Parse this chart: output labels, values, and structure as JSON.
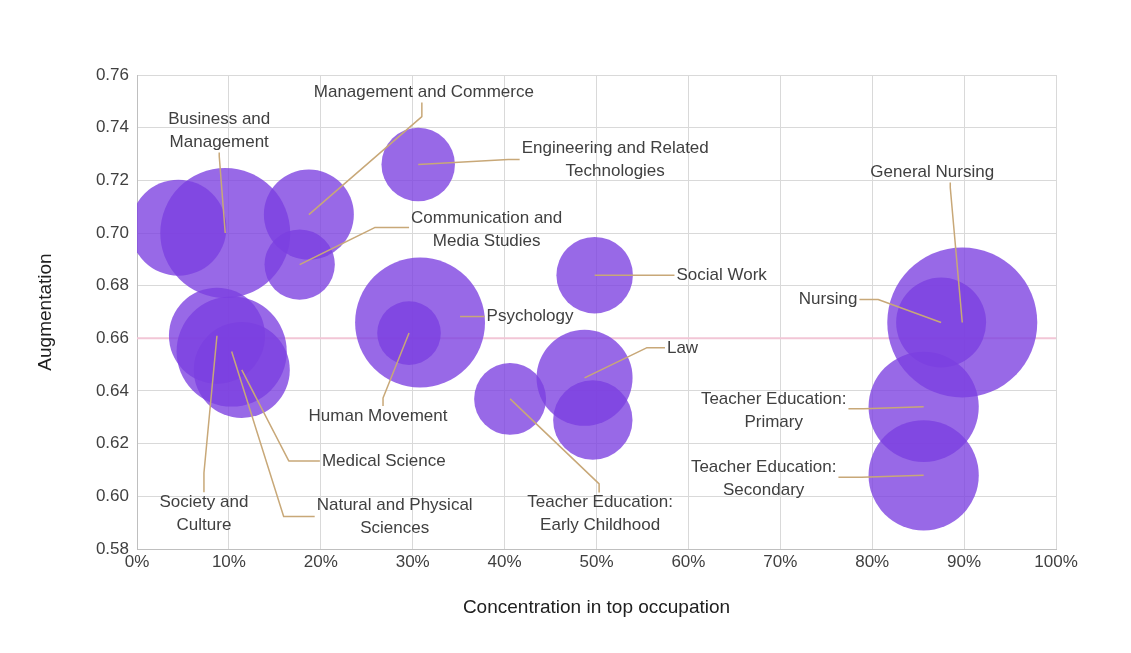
{
  "chart_data": {
    "type": "bubble",
    "xlabel": "Concentration in top occupation",
    "ylabel": "Augmentation",
    "xlim": [
      0,
      100
    ],
    "ylim": [
      0.58,
      0.76
    ],
    "xticks": [
      {
        "value": 0,
        "label": "0%"
      },
      {
        "value": 10,
        "label": "10%"
      },
      {
        "value": 20,
        "label": "20%"
      },
      {
        "value": 30,
        "label": "30%"
      },
      {
        "value": 40,
        "label": "40%"
      },
      {
        "value": 50,
        "label": "50%"
      },
      {
        "value": 60,
        "label": "60%"
      },
      {
        "value": 70,
        "label": "70%"
      },
      {
        "value": 80,
        "label": "80%"
      },
      {
        "value": 90,
        "label": "90%"
      },
      {
        "value": 100,
        "label": "100%"
      }
    ],
    "yticks": [
      {
        "value": 0.58,
        "label": "0.58"
      },
      {
        "value": 0.6,
        "label": "0.60"
      },
      {
        "value": 0.62,
        "label": "0.62"
      },
      {
        "value": 0.64,
        "label": "0.64"
      },
      {
        "value": 0.66,
        "label": "0.66"
      },
      {
        "value": 0.68,
        "label": "0.68"
      },
      {
        "value": 0.7,
        "label": "0.70"
      },
      {
        "value": 0.72,
        "label": "0.72"
      },
      {
        "value": 0.74,
        "label": "0.74"
      },
      {
        "value": 0.76,
        "label": "0.76"
      }
    ],
    "grid": true,
    "legend": false,
    "ref_lines": [
      {
        "axis": "y",
        "value": 0.66,
        "color": "#f2c6d6"
      }
    ],
    "series": [
      {
        "color": "#7b3fe0",
        "x": [
          4.5
        ],
        "values": [
          0.702
        ],
        "sizes": [
          0.41
        ]
      },
      {
        "name": "Business and Management",
        "color": "#7b3fe0",
        "x": [
          9.6
        ],
        "values": [
          0.7
        ],
        "sizes": [
          0.75
        ]
      },
      {
        "name": "Management and Commerce",
        "color": "#7b3fe0",
        "x": [
          18.7
        ],
        "values": [
          0.707
        ],
        "sizes": [
          0.36
        ]
      },
      {
        "name": "Communication and Media Studies",
        "color": "#7b3fe0",
        "x": [
          17.7
        ],
        "values": [
          0.688
        ],
        "sizes": [
          0.22
        ]
      },
      {
        "name": "Engineering and Related Technologies",
        "color": "#7b3fe0",
        "x": [
          30.6
        ],
        "values": [
          0.726
        ],
        "sizes": [
          0.24
        ]
      },
      {
        "name": "Social Work",
        "color": "#7b3fe0",
        "x": [
          49.8
        ],
        "values": [
          0.684
        ],
        "sizes": [
          0.26
        ]
      },
      {
        "name": "Psychology",
        "color": "#7b3fe0",
        "x": [
          30.8
        ],
        "values": [
          0.666
        ],
        "sizes": [
          0.75
        ]
      },
      {
        "name": "Human Movement",
        "color": "#7b3fe0",
        "x": [
          29.6
        ],
        "values": [
          0.662
        ],
        "sizes": [
          0.18
        ]
      },
      {
        "name": "Society and Culture",
        "color": "#7b3fe0",
        "x": [
          8.7
        ],
        "values": [
          0.661
        ],
        "sizes": [
          0.41
        ]
      },
      {
        "name": "Natural and Physical Sciences",
        "color": "#7b3fe0",
        "x": [
          10.3
        ],
        "values": [
          0.655
        ],
        "sizes": [
          0.54
        ]
      },
      {
        "name": "Medical Science",
        "color": "#7b3fe0",
        "x": [
          11.4
        ],
        "values": [
          0.648
        ],
        "sizes": [
          0.41
        ]
      },
      {
        "name": "Law",
        "color": "#7b3fe0",
        "x": [
          48.7
        ],
        "values": [
          0.645
        ],
        "sizes": [
          0.41
        ]
      },
      {
        "color": "#7b3fe0",
        "x": [
          49.6
        ],
        "values": [
          0.629
        ],
        "sizes": [
          0.28
        ]
      },
      {
        "name": "Teacher Education: Early Childhood",
        "color": "#7b3fe0",
        "x": [
          40.6
        ],
        "values": [
          0.637
        ],
        "sizes": [
          0.23
        ]
      },
      {
        "name": "General Nursing",
        "color": "#7b3fe0",
        "x": [
          89.8
        ],
        "values": [
          0.666
        ],
        "sizes": [
          1
        ]
      },
      {
        "name": "Nursing",
        "color": "#7b3fe0",
        "x": [
          87.5
        ],
        "values": [
          0.666
        ],
        "sizes": [
          0.36
        ]
      },
      {
        "name": "Teacher Education: Primary",
        "color": "#7b3fe0",
        "x": [
          85.6
        ],
        "values": [
          0.634
        ],
        "sizes": [
          0.54
        ]
      },
      {
        "name": "Teacher Education: Secondary",
        "color": "#7b3fe0",
        "x": [
          85.6
        ],
        "values": [
          0.608
        ],
        "sizes": [
          0.54
        ]
      }
    ]
  }
}
